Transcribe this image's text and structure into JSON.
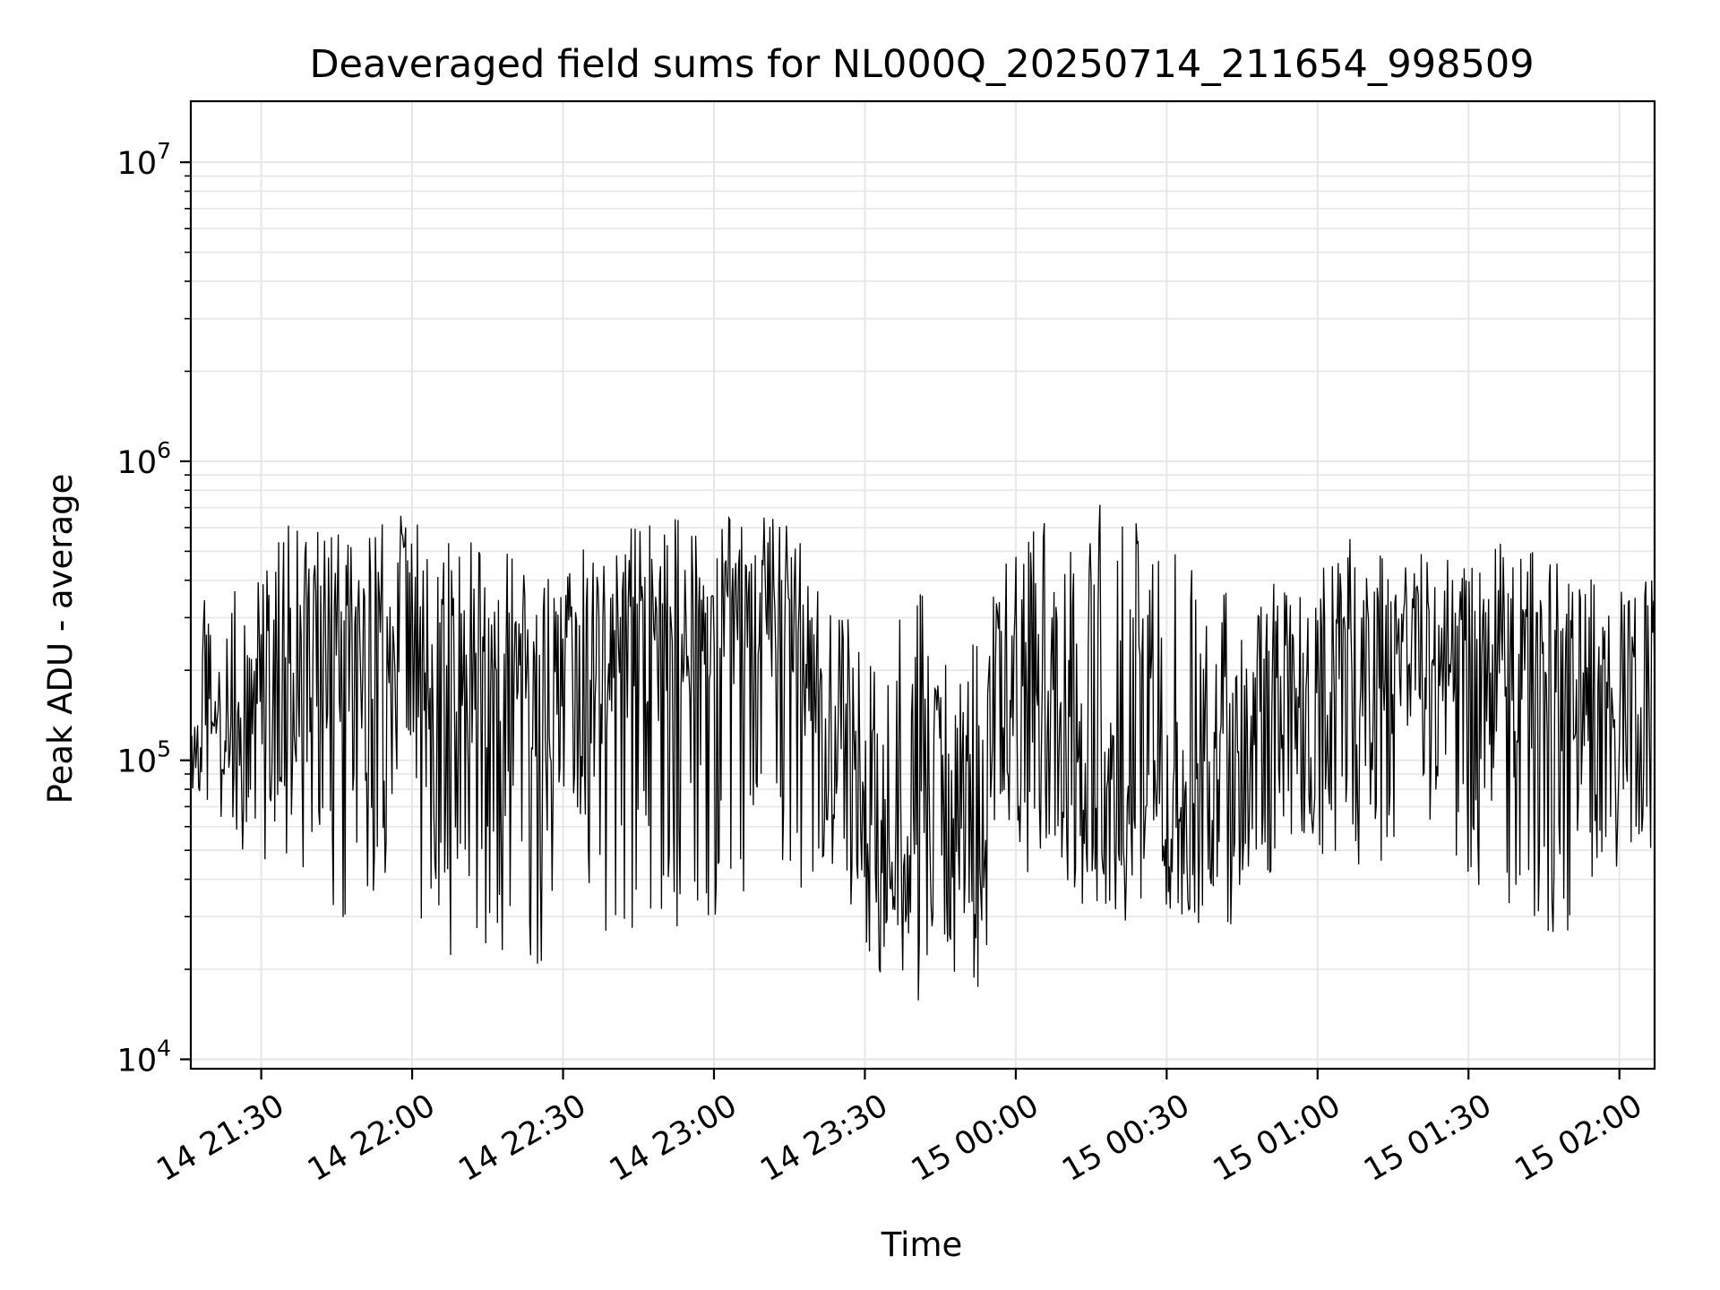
{
  "chart_data": {
    "type": "line",
    "title": "Deaveraged field sums for NL000Q_20250714_211654_998509",
    "xlabel": "Time",
    "ylabel": "Peak ADU - average",
    "yscale": "log",
    "ylim": [
      9300,
      16000000
    ],
    "xlim": [
      "14 21:16",
      "15 02:07"
    ],
    "grid": true,
    "line_color": "#000000",
    "grid_color": "#e6e6e6",
    "x_ticks": [
      {
        "value": "14 21:30",
        "label": "14 21:30"
      },
      {
        "value": "14 22:00",
        "label": "14 22:00"
      },
      {
        "value": "14 22:30",
        "label": "14 22:30"
      },
      {
        "value": "14 23:00",
        "label": "14 23:00"
      },
      {
        "value": "14 23:30",
        "label": "14 23:30"
      },
      {
        "value": "15 00:00",
        "label": "15 00:00"
      },
      {
        "value": "15 00:30",
        "label": "15 00:30"
      },
      {
        "value": "15 01:00",
        "label": "15 01:00"
      },
      {
        "value": "15 01:30",
        "label": "15 01:30"
      },
      {
        "value": "15 02:00",
        "label": "15 02:00"
      }
    ],
    "y_ticks": [
      {
        "value": 10000,
        "base": "10",
        "exp": "4"
      },
      {
        "value": 100000,
        "base": "10",
        "exp": "5"
      },
      {
        "value": 1000000,
        "base": "10",
        "exp": "6"
      },
      {
        "value": 10000000,
        "base": "10",
        "exp": "7"
      }
    ],
    "series": [
      {
        "x": [
          "14 21:16",
          "14 21:22",
          "14 21:28",
          "14 21:34",
          "14 21:40",
          "14 21:46",
          "14 21:52",
          "14 21:58",
          "14 22:04",
          "14 22:10",
          "14 22:16",
          "14 22:22",
          "14 22:28",
          "14 22:34",
          "14 22:40",
          "14 22:46",
          "14 22:52",
          "14 22:58",
          "14 23:04",
          "14 23:10",
          "14 23:16",
          "14 23:22",
          "14 23:28",
          "14 23:34",
          "14 23:40",
          "14 23:46",
          "14 23:52",
          "14 23:58",
          "15 00:04",
          "15 00:10",
          "15 00:16",
          "15 00:22",
          "15 00:28",
          "15 00:34",
          "15 00:40",
          "15 00:46",
          "15 00:52",
          "15 00:58",
          "15 01:04",
          "15 01:10",
          "15 01:16",
          "15 01:22",
          "15 01:28",
          "15 01:34",
          "15 01:40",
          "15 01:46",
          "15 01:52",
          "15 01:58",
          "15 02:04"
        ],
        "min": [
          70000,
          60000,
          44000,
          50000,
          40000,
          28000,
          35000,
          30000,
          18000,
          22000,
          20000,
          21000,
          20000,
          20000,
          24000,
          27000,
          22000,
          30000,
          28000,
          30000,
          28000,
          45000,
          30000,
          17000,
          15000,
          17000,
          16000,
          45000,
          40000,
          36000,
          26000,
          29000,
          32000,
          28000,
          20000,
          35000,
          36000,
          48000,
          40000,
          45000,
          38000,
          38000,
          36000,
          35000,
          28000,
          22000,
          30000,
          38000,
          45000
        ],
        "max": [
          380000,
          340000,
          440000,
          600000,
          640000,
          570000,
          560000,
          740000,
          560000,
          560000,
          530000,
          480000,
          420000,
          600000,
          580000,
          620000,
          640000,
          650000,
          650000,
          660000,
          620000,
          350000,
          390000,
          260000,
          440000,
          250000,
          250000,
          650000,
          640000,
          650000,
          720000,
          690000,
          690000,
          440000,
          460000,
          450000,
          420000,
          400000,
          550000,
          550000,
          500000,
          500000,
          470000,
          540000,
          590000,
          470000,
          430000,
          410000,
          420000
        ],
        "typical": [
          120000,
          130000,
          110000,
          150000,
          200000,
          180000,
          220000,
          230000,
          210000,
          160000,
          140000,
          130000,
          140000,
          150000,
          210000,
          220000,
          260000,
          280000,
          290000,
          300000,
          280000,
          110000,
          80000,
          60000,
          45000,
          50000,
          70000,
          150000,
          110000,
          90000,
          80000,
          70000,
          75000,
          80000,
          85000,
          100000,
          130000,
          170000,
          140000,
          180000,
          200000,
          230000,
          220000,
          200000,
          210000,
          180000,
          170000,
          160000,
          170000
        ]
      }
    ]
  }
}
